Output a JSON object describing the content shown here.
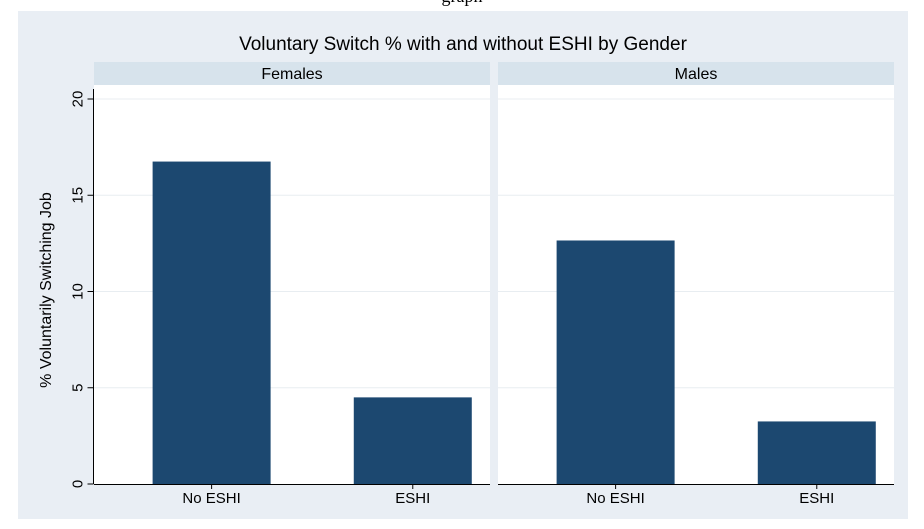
{
  "caption_fragment": "graph",
  "chart_data": {
    "type": "bar",
    "title": "Voluntary Switch % with and without ESHI by Gender",
    "ylabel": "% Voluntarily Switching Job",
    "xlabel": "",
    "ylim": [
      0,
      20
    ],
    "yticks": [
      0,
      5,
      10,
      15,
      20
    ],
    "categories": [
      "No ESHI",
      "ESHI"
    ],
    "panels": [
      {
        "label": "Females",
        "values": [
          16.75,
          4.5
        ]
      },
      {
        "label": "Males",
        "values": [
          12.65,
          3.25
        ]
      }
    ],
    "bar_color": "#1c4870",
    "panel_strip_color": "#d7e3ec",
    "grid": true
  }
}
